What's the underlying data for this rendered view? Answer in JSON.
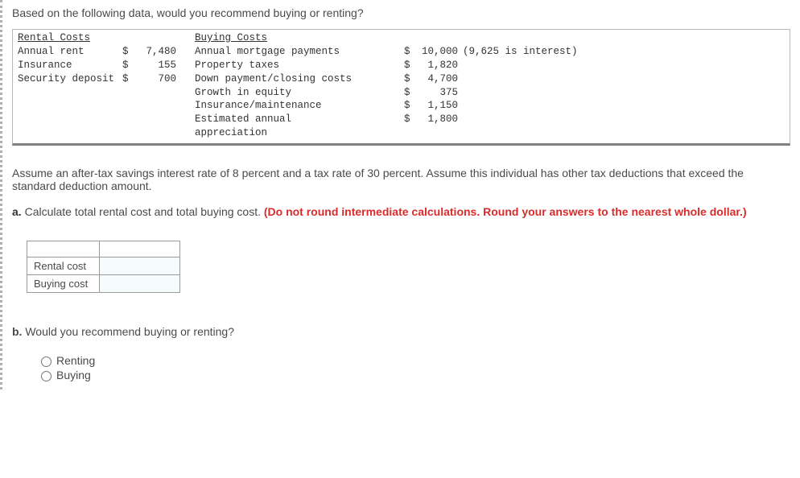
{
  "intro": "Based on the following data, would you recommend buying or renting?",
  "block": {
    "rental_header": "Rental Costs",
    "buying_header": "Buying Costs",
    "rental_rows": [
      {
        "label": "Annual rent",
        "cur": "$",
        "amt": "7,480"
      },
      {
        "label": "Insurance",
        "cur": "$",
        "amt": "155"
      },
      {
        "label": "Security deposit",
        "cur": "$",
        "amt": "700"
      }
    ],
    "buying_rows": [
      {
        "label": "Annual mortgage payments",
        "cur": "$",
        "amt": "10,000",
        "note": "(9,625 is interest)"
      },
      {
        "label": "Property taxes",
        "cur": "$",
        "amt": "1,820",
        "note": ""
      },
      {
        "label": "Down payment/closing costs",
        "cur": "$",
        "amt": "4,700",
        "note": ""
      },
      {
        "label": "Growth in equity",
        "cur": "$",
        "amt": "375",
        "note": ""
      },
      {
        "label": "Insurance/maintenance",
        "cur": "$",
        "amt": "1,150",
        "note": ""
      },
      {
        "label": "Estimated annual appreciation",
        "cur": "$",
        "amt": "1,800",
        "note": ""
      }
    ]
  },
  "assume": "Assume an after-tax savings interest rate of 8 percent and a tax rate of 30 percent. Assume this individual has other tax deductions that exceed the standard deduction amount.",
  "partA": {
    "label": "a.",
    "text": " Calculate total rental cost and total buying cost. ",
    "red": "(Do not round intermediate calculations. Round your answers to the nearest whole dollar.)"
  },
  "answer_table": {
    "row1": "Rental cost",
    "row2": "Buying cost"
  },
  "partB": {
    "label": "b.",
    "text": " Would you recommend buying or renting?",
    "opt1": "Renting",
    "opt2": "Buying"
  }
}
